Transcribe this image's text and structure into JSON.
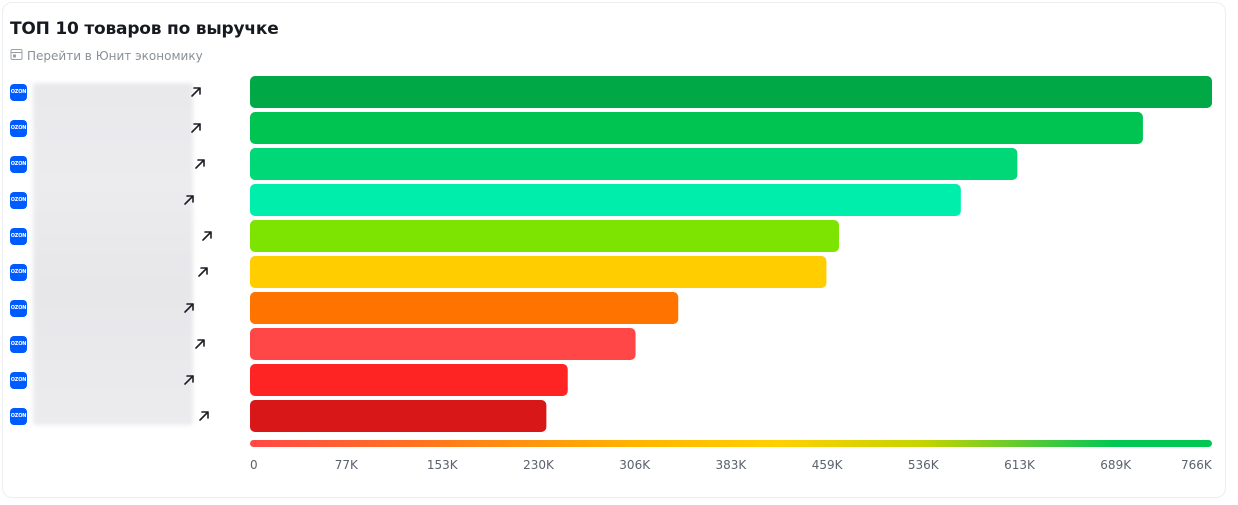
{
  "header": {
    "title": "ТОП 10 товаров по выручке",
    "unit_link_label": "Перейти в Юнит экономику"
  },
  "marketplace_badge": "OZON",
  "chart_data": {
    "type": "bar",
    "orientation": "horizontal",
    "title": "ТОП 10 товаров по выручке",
    "categories": [
      "",
      "",
      "",
      "",
      "",
      "",
      "",
      "",
      "",
      ""
    ],
    "values": [
      766000,
      711000,
      611000,
      566000,
      469000,
      459000,
      341000,
      307000,
      253000,
      236000
    ],
    "colors": [
      "#00a846",
      "#00c452",
      "#00d877",
      "#00eeac",
      "#7de300",
      "#ffcd00",
      "#ff7400",
      "#ff4747",
      "#ff2424",
      "#d81818"
    ],
    "xlim": [
      0,
      766000
    ],
    "x_ticks": [
      "0",
      "77K",
      "153K",
      "230K",
      "306K",
      "383K",
      "459K",
      "536K",
      "613K",
      "689K",
      "766K"
    ],
    "grid": false,
    "legend": "color-scale-bottom"
  }
}
